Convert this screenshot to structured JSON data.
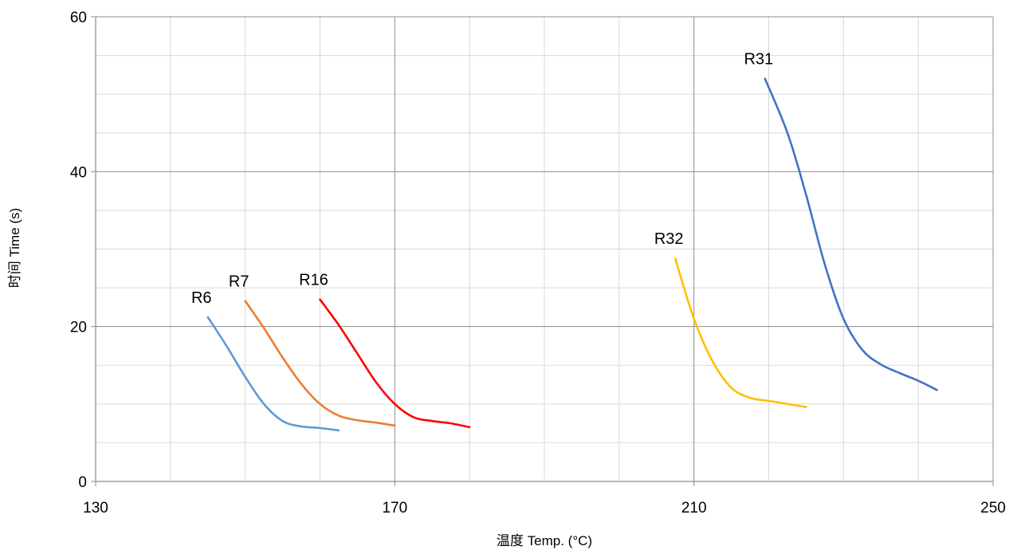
{
  "chart_data": {
    "type": "line",
    "title": "",
    "xlabel": "温度 Temp. (°C)",
    "ylabel": "时间 Time (s)",
    "xlim": [
      130,
      250
    ],
    "ylim": [
      0,
      60
    ],
    "x_major_ticks": [
      130,
      170,
      210,
      250
    ],
    "y_major_ticks": [
      0,
      20,
      40,
      60
    ],
    "x_tick_labels": [
      "130",
      "170",
      "210",
      "250"
    ],
    "y_tick_labels": [
      "0",
      "20",
      "40",
      "60"
    ],
    "x_minor_step": 10,
    "y_minor_step": 5,
    "grid": true,
    "legend": "none",
    "series": [
      {
        "name": "R6",
        "color": "#5b9bd5",
        "points": [
          [
            145,
            21.2
          ],
          [
            147.5,
            17.5
          ],
          [
            150,
            13.5
          ],
          [
            152.5,
            10
          ],
          [
            155,
            7.8
          ],
          [
            157.5,
            7.1
          ],
          [
            160,
            6.9
          ],
          [
            162.5,
            6.6
          ]
        ]
      },
      {
        "name": "R7",
        "color": "#ed7d31",
        "points": [
          [
            150,
            23.3
          ],
          [
            152.5,
            19.8
          ],
          [
            155,
            16
          ],
          [
            157.5,
            12.6
          ],
          [
            160,
            10
          ],
          [
            162.5,
            8.5
          ],
          [
            165,
            7.9
          ],
          [
            167.5,
            7.6
          ],
          [
            170,
            7.2
          ]
        ]
      },
      {
        "name": "R16",
        "color": "#ff0000",
        "points": [
          [
            160,
            23.5
          ],
          [
            162.5,
            20.2
          ],
          [
            165,
            16.5
          ],
          [
            167.5,
            12.8
          ],
          [
            170,
            10
          ],
          [
            172.5,
            8.3
          ],
          [
            175,
            7.8
          ],
          [
            177.5,
            7.5
          ],
          [
            180,
            7.0
          ]
        ]
      },
      {
        "name": "R32",
        "color": "#ffc000",
        "points": [
          [
            207.5,
            28.8
          ],
          [
            210,
            21
          ],
          [
            212.5,
            15.5
          ],
          [
            215,
            12.1
          ],
          [
            217.5,
            10.8
          ],
          [
            220,
            10.4
          ],
          [
            222.5,
            10
          ],
          [
            225,
            9.6
          ]
        ]
      },
      {
        "name": "R31",
        "color": "#4472c4",
        "points": [
          [
            219.5,
            52
          ],
          [
            222.5,
            45
          ],
          [
            225,
            37
          ],
          [
            227.5,
            28
          ],
          [
            230,
            21
          ],
          [
            232.5,
            17
          ],
          [
            235,
            15.1
          ],
          [
            237.5,
            14
          ],
          [
            240,
            13
          ],
          [
            242.5,
            11.8
          ]
        ]
      }
    ]
  }
}
